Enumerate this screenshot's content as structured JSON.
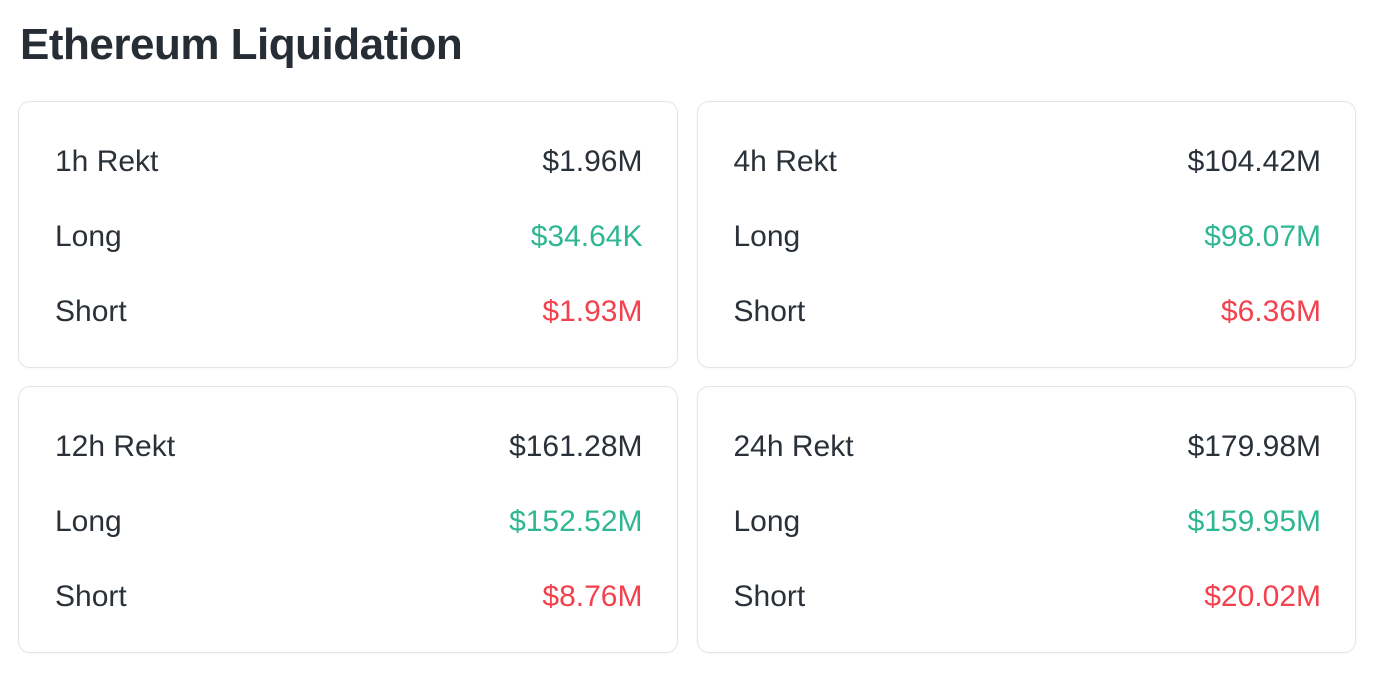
{
  "title": "Ethereum Liquidation",
  "colors": {
    "text_dark": "#2B3139",
    "long_green": "#2EB790",
    "short_red": "#F3414E",
    "card_border": "#E5E5E6",
    "background": "#FFFFFF"
  },
  "cards": [
    {
      "period": "1h",
      "rows": [
        {
          "label": "1h Rekt",
          "value": "$1.96M"
        },
        {
          "label": "Long",
          "value": "$34.64K"
        },
        {
          "label": "Short",
          "value": "$1.93M"
        }
      ]
    },
    {
      "period": "4h",
      "rows": [
        {
          "label": "4h Rekt",
          "value": "$104.42M"
        },
        {
          "label": "Long",
          "value": "$98.07M"
        },
        {
          "label": "Short",
          "value": "$6.36M"
        }
      ]
    },
    {
      "period": "12h",
      "rows": [
        {
          "label": "12h Rekt",
          "value": "$161.28M"
        },
        {
          "label": "Long",
          "value": "$152.52M"
        },
        {
          "label": "Short",
          "value": "$8.76M"
        }
      ]
    },
    {
      "period": "24h",
      "rows": [
        {
          "label": "24h Rekt",
          "value": "$179.98M"
        },
        {
          "label": "Long",
          "value": "$159.95M"
        },
        {
          "label": "Short",
          "value": "$20.02M"
        }
      ]
    }
  ]
}
